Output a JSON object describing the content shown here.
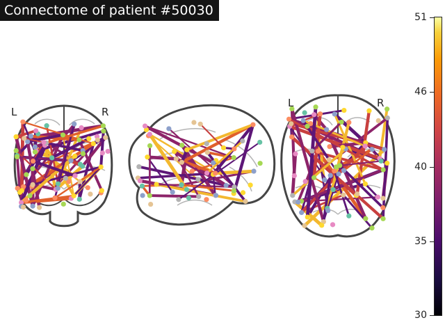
{
  "title": "Connectome of patient #50030",
  "views": {
    "coronal": {
      "left_label": "L",
      "right_label": "R"
    },
    "axial": {
      "left_label": "L",
      "right_label": "R"
    }
  },
  "colorbar": {
    "colormap": "inferno",
    "min": 30,
    "max": 51,
    "ticks": [
      "51",
      "46",
      "40",
      "35",
      "30"
    ]
  },
  "colors": {
    "outline": "#454545",
    "inner_contour": "#b4b4b4",
    "title_bg": "#141414",
    "edge_dark": "#5d1677",
    "edge_mid": "#8c2369",
    "edge_red": "#c8403f",
    "edge_orange": "#e0602c",
    "edge_yellow": "#f3b82f"
  },
  "node_palette": [
    "#8da0cb",
    "#66c2a5",
    "#fc8d62",
    "#e78ac3",
    "#a6d854",
    "#ffd92f",
    "#e5c494",
    "#b3b3b3"
  ]
}
